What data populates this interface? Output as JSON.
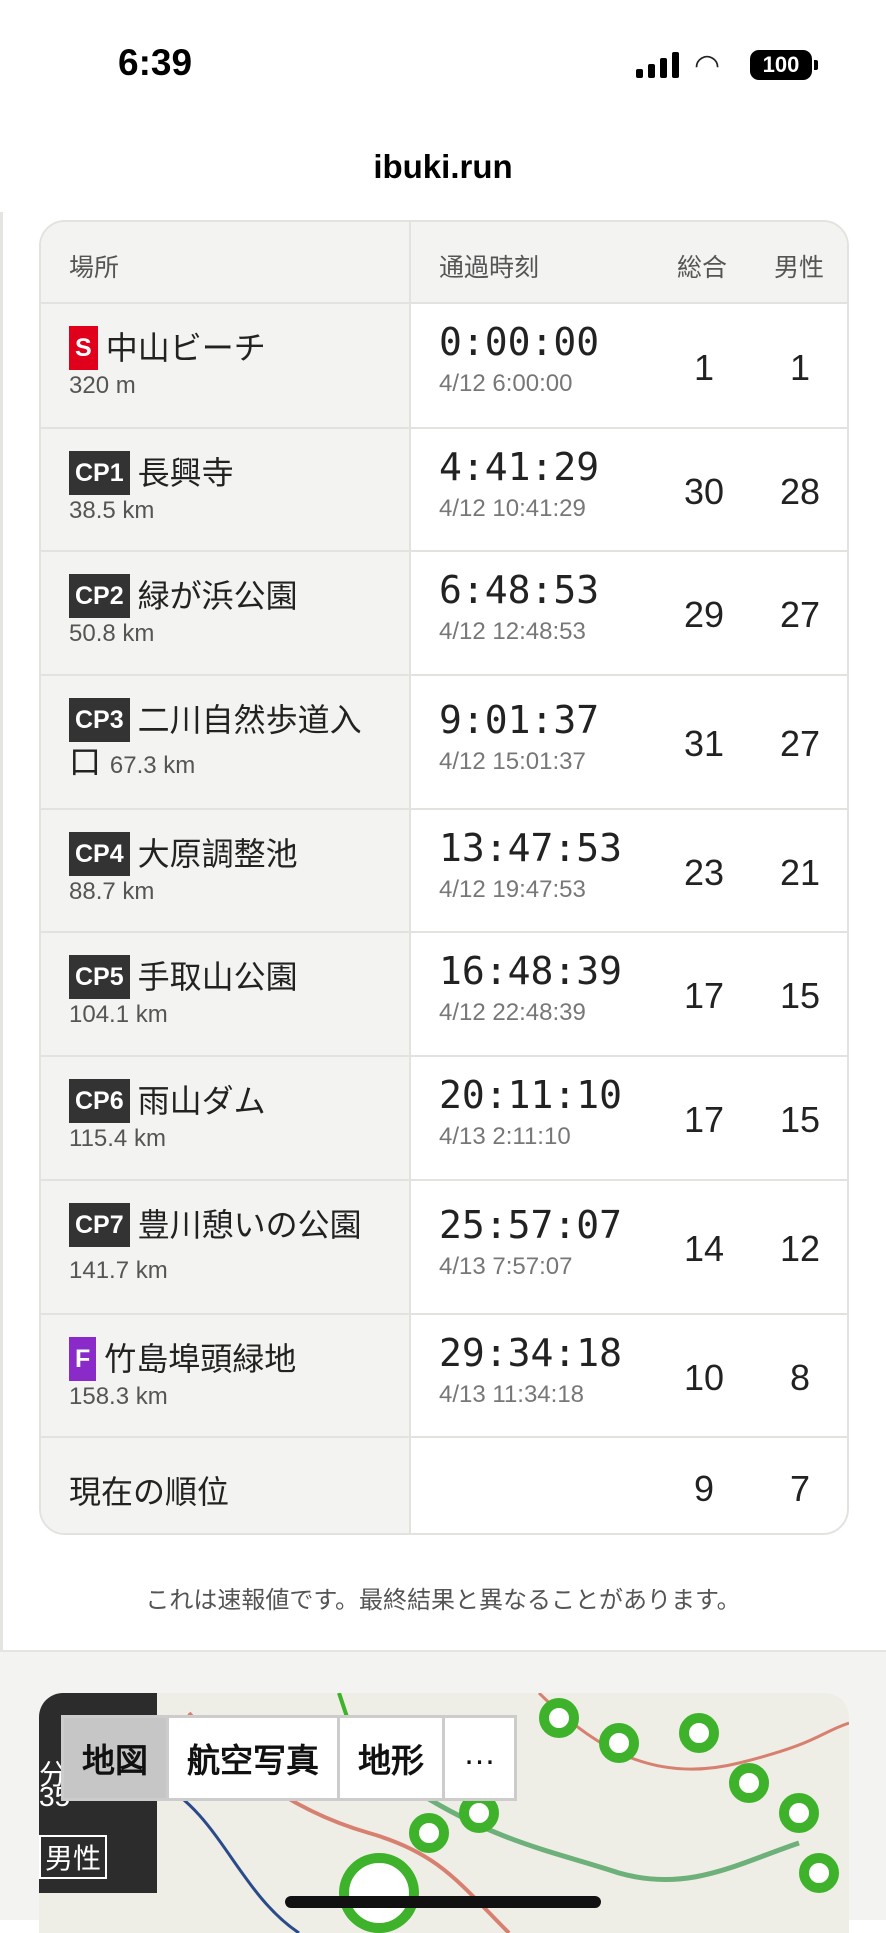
{
  "status_bar": {
    "time": "6:39",
    "battery": "100"
  },
  "header": {
    "title": "ibuki.run"
  },
  "table": {
    "columns": [
      "場所",
      "通過時刻",
      "総合",
      "男性"
    ],
    "rows": [
      {
        "badge": "S",
        "badge_color": "#e0001b",
        "name": "中山ビーチ",
        "distance": "320 m",
        "elapsed": "0:00:00",
        "clock": "4/12 6:00:00",
        "overall": "1",
        "male": "1"
      },
      {
        "badge": "CP1",
        "badge_color": "#333333",
        "name": "長興寺",
        "distance": "38.5 km",
        "elapsed": "4:41:29",
        "clock": "4/12 10:41:29",
        "overall": "30",
        "male": "28"
      },
      {
        "badge": "CP2",
        "badge_color": "#333333",
        "name": "緑が浜公園",
        "distance": "50.8 km",
        "elapsed": "6:48:53",
        "clock": "4/12 12:48:53",
        "overall": "29",
        "male": "27"
      },
      {
        "badge": "CP3",
        "badge_color": "#333333",
        "name": "二川自然歩道入口",
        "distance": "67.3 km",
        "elapsed": "9:01:37",
        "clock": "4/12 15:01:37",
        "overall": "31",
        "male": "27"
      },
      {
        "badge": "CP4",
        "badge_color": "#333333",
        "name": "大原調整池",
        "distance": "88.7 km",
        "elapsed": "13:47:53",
        "clock": "4/12 19:47:53",
        "overall": "23",
        "male": "21"
      },
      {
        "badge": "CP5",
        "badge_color": "#333333",
        "name": "手取山公園",
        "distance": "104.1 km",
        "elapsed": "16:48:39",
        "clock": "4/12 22:48:39",
        "overall": "17",
        "male": "15"
      },
      {
        "badge": "CP6",
        "badge_color": "#333333",
        "name": "雨山ダム",
        "distance": "115.4 km",
        "elapsed": "20:11:10",
        "clock": "4/13 2:11:10",
        "overall": "17",
        "male": "15"
      },
      {
        "badge": "CP7",
        "badge_color": "#333333",
        "name": "豊川憩いの公園",
        "distance": "141.7 km",
        "elapsed": "25:57:07",
        "clock": "4/13 7:57:07",
        "overall": "14",
        "male": "12"
      },
      {
        "badge": "F",
        "badge_color": "#8a2bc9",
        "name": "竹島埠頭緑地",
        "distance": "158.3 km",
        "elapsed": "29:34:18",
        "clock": "4/13 11:34:18",
        "overall": "10",
        "male": "8"
      }
    ],
    "current": {
      "label": "現在の順位",
      "overall": "9",
      "male": "7"
    }
  },
  "note": "これは速報値です。最終結果と異なることがあります。",
  "map": {
    "layers": [
      "地図",
      "航空写真",
      "地形",
      "…"
    ],
    "active_layer": "地図",
    "side_labels": [
      "分",
      "35",
      "男性"
    ]
  }
}
